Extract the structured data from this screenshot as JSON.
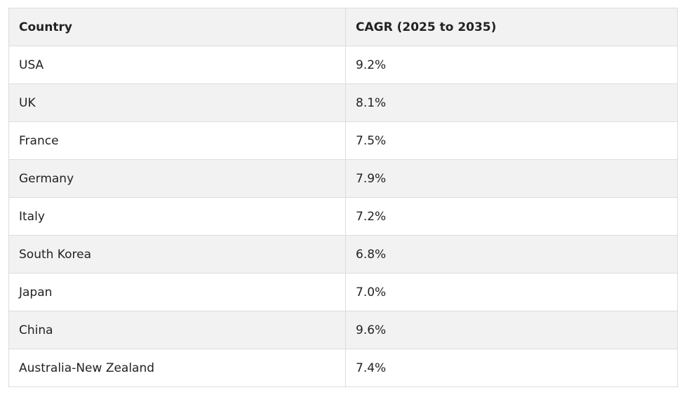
{
  "table": {
    "headers": [
      "Country",
      "CAGR (2025 to 2035)"
    ],
    "rows": [
      [
        "USA",
        "9.2%"
      ],
      [
        "UK",
        "8.1%"
      ],
      [
        "France",
        "7.5%"
      ],
      [
        "Germany",
        "7.9%"
      ],
      [
        "Italy",
        "7.2%"
      ],
      [
        "South Korea",
        "6.8%"
      ],
      [
        "Japan",
        "7.0%"
      ],
      [
        "China",
        "9.6%"
      ],
      [
        "Australia-New Zealand",
        "7.4%"
      ]
    ]
  }
}
